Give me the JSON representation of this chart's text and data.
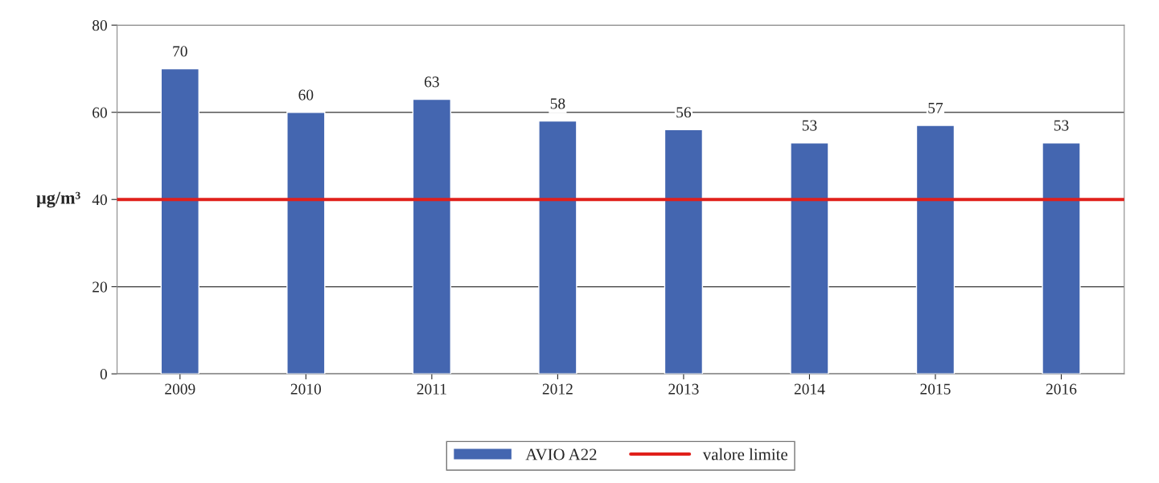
{
  "chart_data": {
    "type": "bar",
    "ylabel": "µg/m³",
    "categories": [
      "2009",
      "2010",
      "2011",
      "2012",
      "2013",
      "2014",
      "2015",
      "2016"
    ],
    "series": [
      {
        "name": "AVIO A22",
        "color": "#4466b0",
        "values": [
          70,
          60,
          63,
          58,
          56,
          53,
          57,
          53
        ]
      }
    ],
    "ylim": [
      0,
      80
    ],
    "yticks": [
      0,
      20,
      40,
      60,
      80
    ],
    "grid": "y",
    "data_labels": true,
    "ref_lines": [
      {
        "axis": "y",
        "value": 40,
        "label": "valore limite",
        "color": "#e0201b",
        "line_style": "solid"
      }
    ],
    "legend": "bottom"
  }
}
